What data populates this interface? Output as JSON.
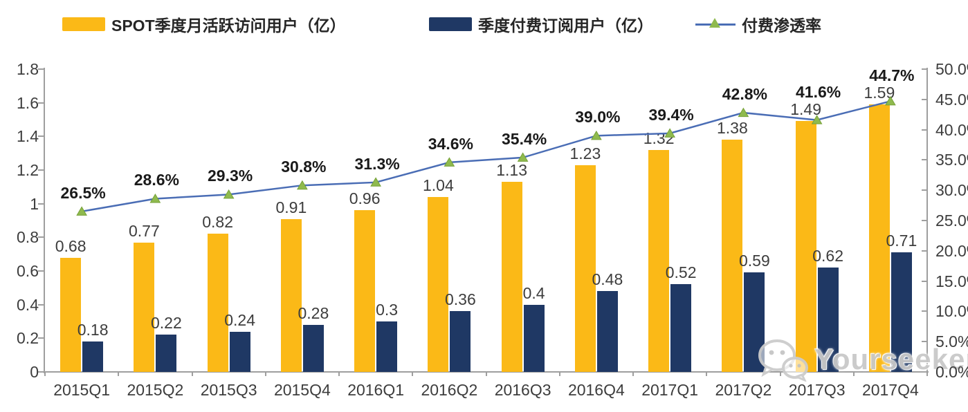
{
  "legend": {
    "items": [
      {
        "label": "SPOT季度月活跃访问用户（亿）",
        "swatch": "bar"
      },
      {
        "label": "季度付费订阅用户（亿）",
        "swatch": "bar"
      },
      {
        "label": "付费渗透率",
        "swatch": "line"
      }
    ]
  },
  "watermark": {
    "text": "Yourseeker",
    "icon": "wechat-icon"
  },
  "colors": {
    "mau_bar": "#FBB917",
    "subs_bar": "#1F3864",
    "line": "#4A6DB5",
    "marker_fill": "#8FBA4E",
    "marker_edge": "#76A138",
    "axis": "#9E9E9E",
    "label_text": "#3D3D3D",
    "pct_label_text": "#1A1A1A"
  },
  "chart_data": {
    "type": "combo-bar-line",
    "categories": [
      "2015Q1",
      "2015Q2",
      "2015Q3",
      "2015Q4",
      "2016Q1",
      "2016Q2",
      "2016Q3",
      "2016Q4",
      "2017Q1",
      "2017Q2",
      "2017Q3",
      "2017Q4"
    ],
    "series": [
      {
        "name": "SPOT季度月活跃访问用户（亿）",
        "type": "bar",
        "axis": "left",
        "values": [
          0.68,
          0.77,
          0.82,
          0.91,
          0.96,
          1.04,
          1.13,
          1.23,
          1.32,
          1.38,
          1.49,
          1.59
        ],
        "labels": [
          "0.68",
          "0.77",
          "0.82",
          "0.91",
          "0.96",
          "1.04",
          "1.13",
          "1.23",
          "1.32",
          "1.38",
          "1.49",
          "1.59"
        ]
      },
      {
        "name": "季度付费订阅用户（亿）",
        "type": "bar",
        "axis": "left",
        "values": [
          0.18,
          0.22,
          0.24,
          0.28,
          0.3,
          0.36,
          0.4,
          0.48,
          0.52,
          0.59,
          0.62,
          0.71
        ],
        "labels": [
          "0.18",
          "0.22",
          "0.24",
          "0.28",
          "0.3",
          "0.36",
          "0.4",
          "0.48",
          "0.52",
          "0.59",
          "0.62",
          "0.71"
        ]
      },
      {
        "name": "付费渗透率",
        "type": "line",
        "axis": "right",
        "marker": "triangle",
        "values": [
          26.5,
          28.6,
          29.3,
          30.8,
          31.3,
          34.6,
          35.4,
          39.0,
          39.4,
          42.8,
          41.6,
          44.7
        ],
        "labels": [
          "26.5%",
          "28.6%",
          "29.3%",
          "30.8%",
          "31.3%",
          "34.6%",
          "35.4%",
          "39.0%",
          "39.4%",
          "42.8%",
          "41.6%",
          "44.7%"
        ]
      }
    ],
    "axes": {
      "left": {
        "min": 0,
        "max": 1.8,
        "tick_step": 0.2,
        "ticks": [
          "1.8",
          "1.6",
          "1.4",
          "1.2",
          "1",
          "0.8",
          "0.6",
          "0.4",
          "0.2",
          "0"
        ]
      },
      "right": {
        "min": 0,
        "max": 50,
        "tick_step": 5,
        "ticks": [
          "50.0%",
          "45.0%",
          "40.0%",
          "35.0%",
          "30.0%",
          "25.0%",
          "20.0%",
          "15.0%",
          "10.0%",
          "5.0%",
          "0.0%"
        ]
      }
    },
    "grid": false,
    "legend_position": "top"
  }
}
